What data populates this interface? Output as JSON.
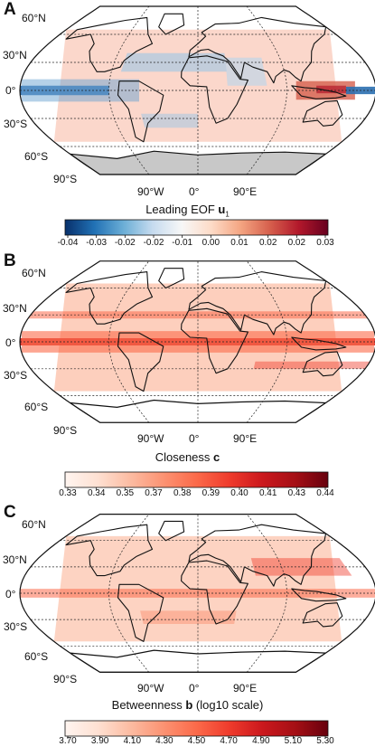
{
  "chart_data": [
    {
      "type": "heatmap",
      "panel": "A",
      "title": "Leading EOF u",
      "subscript": "1",
      "colormap": "diverging blue-white-red",
      "colorbar_ticks": [
        "-0.04",
        "-0.03",
        "-0.02",
        "-0.02",
        "-0.01",
        "0.00",
        "0.01",
        "0.02",
        "0.02",
        "0.03"
      ],
      "colorbar_range": [
        -0.04,
        0.03
      ],
      "colorbar_colors": [
        "#08306b",
        "#2171b5",
        "#6baed6",
        "#c6dbef",
        "#f7f7f7",
        "#fddbc7",
        "#f4a582",
        "#d6604d",
        "#b2182b",
        "#67001f"
      ],
      "lat_labels": [
        "60°N",
        "30°N",
        "0°",
        "30°S",
        "60°S",
        "90°S"
      ],
      "lon_labels": [
        "90°W",
        "0°",
        "90°E"
      ]
    },
    {
      "type": "heatmap",
      "panel": "B",
      "title": "Closeness c",
      "colormap": "sequential white-red",
      "colorbar_ticks": [
        "0.33",
        "0.34",
        "0.35",
        "0.37",
        "0.38",
        "0.39",
        "0.40",
        "0.41",
        "0.43",
        "0.44"
      ],
      "colorbar_range": [
        0.33,
        0.44
      ],
      "colorbar_colors": [
        "#fff5f0",
        "#fee0d2",
        "#fcbba1",
        "#fc9272",
        "#fb6a4a",
        "#ef3b2c",
        "#cb181d",
        "#a50f15",
        "#67000d"
      ],
      "lat_labels": [
        "60°N",
        "30°N",
        "0°",
        "30°S",
        "60°S",
        "90°S"
      ],
      "lon_labels": [
        "90°W",
        "0°",
        "90°E"
      ]
    },
    {
      "type": "heatmap",
      "panel": "C",
      "title": "Betweenness b (log10 scale)",
      "colormap": "sequential white-red",
      "colorbar_ticks": [
        "3.70",
        "3.90",
        "4.10",
        "4.30",
        "4.50",
        "4.70",
        "4.90",
        "5.10",
        "5.30"
      ],
      "colorbar_range": [
        3.7,
        5.3
      ],
      "colorbar_colors": [
        "#fff5f0",
        "#fee0d2",
        "#fcbba1",
        "#fc9272",
        "#fb6a4a",
        "#ef3b2c",
        "#cb181d",
        "#a50f15",
        "#67000d"
      ],
      "lat_labels": [
        "60°N",
        "30°N",
        "0°",
        "30°S",
        "60°S",
        "90°S"
      ],
      "lon_labels": [
        "90°W",
        "0°",
        "90°E"
      ]
    }
  ],
  "panels": [
    {
      "letter": "A",
      "caption_pre": "Leading EOF ",
      "caption_bold": "u",
      "caption_sub": "1",
      "caption_post": ""
    },
    {
      "letter": "B",
      "caption_pre": "Closeness ",
      "caption_bold": "c",
      "caption_sub": "",
      "caption_post": ""
    },
    {
      "letter": "C",
      "caption_pre": "Betweenness ",
      "caption_bold": "b",
      "caption_sub": "",
      "caption_post": " (log10 scale)"
    }
  ]
}
